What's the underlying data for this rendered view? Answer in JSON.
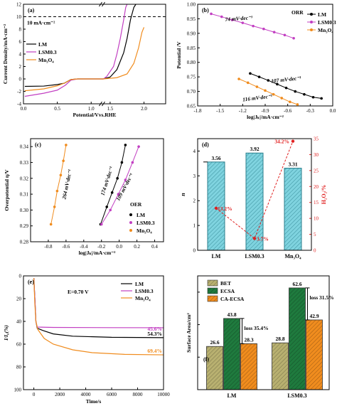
{
  "chart_data": [
    {
      "panel": "(a)",
      "type": "line",
      "xlabel": "Potential/Vvs.RHE",
      "ylabel": "Current Density/mA·cm⁻²",
      "xlim": [
        0.0,
        2.1
      ],
      "ylim": [
        -4,
        12
      ],
      "x_broken_between": [
        1.1,
        1.4
      ],
      "xticks": [
        "0.0",
        "0.5",
        "1.0",
        "1.5",
        "2.0"
      ],
      "yticks": [
        "-4",
        "-2",
        "0",
        "2",
        "4",
        "6",
        "8",
        "10",
        "12"
      ],
      "reference_line": {
        "y": 10,
        "label": "10 mA·cm⁻²"
      },
      "legend": "left",
      "series": [
        {
          "name": "LM",
          "color": "#000000",
          "points": [
            [
              0.02,
              -1.2
            ],
            [
              0.3,
              -1.15
            ],
            [
              0.5,
              -0.9
            ],
            [
              0.6,
              -0.7
            ],
            [
              0.7,
              -0.1
            ],
            [
              0.8,
              0.0
            ],
            [
              1.0,
              0.0
            ],
            [
              1.1,
              0.0
            ],
            [
              1.4,
              0.0
            ],
            [
              1.5,
              0.3
            ],
            [
              1.6,
              1.5
            ],
            [
              1.7,
              4.2
            ],
            [
              1.75,
              6.5
            ],
            [
              1.8,
              9.5
            ],
            [
              1.85,
              11.5
            ],
            [
              1.88,
              12.4
            ]
          ]
        },
        {
          "name": "LSM0.3",
          "color": "#c23fc2",
          "points": [
            [
              0.02,
              -2.8
            ],
            [
              0.3,
              -2.3
            ],
            [
              0.5,
              -1.8
            ],
            [
              0.62,
              -1.0
            ],
            [
              0.7,
              -0.2
            ],
            [
              0.8,
              0.0
            ],
            [
              1.0,
              0.0
            ],
            [
              1.1,
              0.0
            ],
            [
              1.4,
              0.0
            ],
            [
              1.45,
              0.4
            ],
            [
              1.55,
              2.0
            ],
            [
              1.6,
              4.0
            ],
            [
              1.65,
              6.5
            ],
            [
              1.7,
              9.5
            ],
            [
              1.73,
              11.5
            ],
            [
              1.75,
              12.4
            ]
          ]
        },
        {
          "name": "Mn₃O₄",
          "color": "#f08c1e",
          "points": [
            [
              0.02,
              -1.9
            ],
            [
              0.3,
              -1.6
            ],
            [
              0.5,
              -1.1
            ],
            [
              0.62,
              -0.6
            ],
            [
              0.7,
              -0.1
            ],
            [
              0.8,
              0.0
            ],
            [
              1.0,
              0.0
            ],
            [
              1.1,
              0.0
            ],
            [
              1.4,
              0.0
            ],
            [
              1.6,
              0.2
            ],
            [
              1.75,
              0.8
            ],
            [
              1.85,
              2.5
            ],
            [
              1.92,
              5.0
            ],
            [
              1.97,
              7.5
            ],
            [
              2.0,
              8.3
            ]
          ]
        }
      ]
    },
    {
      "panel": "(b)",
      "type": "line",
      "annotation": "ORR",
      "xlabel": "log|Jₖ|/mA·cm⁻²",
      "ylabel": "Potential /V",
      "xlim": [
        -1.8,
        0.0
      ],
      "ylim": [
        0.65,
        1.0
      ],
      "xticks": [
        "-1.8",
        "-1.5",
        "-1.2",
        "-0.9",
        "-0.6",
        "-0.3",
        "0.0"
      ],
      "yticks": [
        "0.65",
        "0.70",
        "0.75",
        "0.80",
        "0.85",
        "0.90",
        "0.95",
        "1.00"
      ],
      "legend": "top-right",
      "series": [
        {
          "name": "LM",
          "color": "#000000",
          "x": [
            -1.1,
            -0.98,
            -0.86,
            -0.74,
            -0.62,
            -0.5,
            -0.38,
            -0.26,
            -0.15
          ],
          "y": [
            0.762,
            0.75,
            0.738,
            0.725,
            0.712,
            0.7,
            0.69,
            0.68,
            0.676
          ],
          "slope_label": "107 mV·dec⁻¹"
        },
        {
          "name": "LSM0.3",
          "color": "#c23fc2",
          "x": [
            -1.62,
            -1.48,
            -1.34,
            -1.2,
            -1.06,
            -0.92,
            -0.78,
            -0.64,
            -0.52
          ],
          "y": [
            0.967,
            0.957,
            0.946,
            0.936,
            0.925,
            0.915,
            0.904,
            0.894,
            0.883
          ],
          "slope_label": "74 mV·dec⁻¹"
        },
        {
          "name": "Mn₃O₄",
          "color": "#f08c1e",
          "x": [
            -1.25,
            -1.13,
            -1.01,
            -0.9,
            -0.79,
            -0.68,
            -0.57,
            -0.47
          ],
          "y": [
            0.743,
            0.73,
            0.716,
            0.703,
            0.69,
            0.677,
            0.664,
            0.655
          ],
          "slope_label": "116 mV·dec⁻¹"
        }
      ]
    },
    {
      "panel": "(c)",
      "type": "line",
      "annotation": "OER",
      "xlabel": "log|Jₖ|/mA·cm⁻²",
      "ylabel": "Overpotential η/V",
      "xlim": [
        -1.0,
        0.5
      ],
      "ylim": [
        0.28,
        0.345
      ],
      "xticks": [
        "-0.8",
        "-0.6",
        "-0.4",
        "-0.2",
        "0.0",
        "0.2",
        "0.4"
      ],
      "yticks": [
        "0.28",
        "0.29",
        "0.30",
        "0.31",
        "0.32",
        "0.33",
        "0.34"
      ],
      "legend": "bottom-right",
      "series": [
        {
          "name": "LM",
          "color": "#000000",
          "x": [
            -0.21,
            -0.14,
            -0.08,
            -0.02,
            0.03,
            0.07
          ],
          "y": [
            0.291,
            0.302,
            0.311,
            0.32,
            0.33,
            0.341
          ],
          "slope_label": "174 mV·dec⁻¹"
        },
        {
          "name": "LSM0.3",
          "color": "#c23fc2",
          "x": [
            -0.2,
            -0.1,
            -0.01,
            0.07,
            0.15,
            0.22
          ],
          "y": [
            0.291,
            0.3,
            0.31,
            0.319,
            0.33,
            0.34
          ],
          "slope_label": "109 mV·dec⁻¹"
        },
        {
          "name": "Mn₃O₄",
          "color": "#f08c1e",
          "x": [
            -0.77,
            -0.73,
            -0.7,
            -0.66,
            -0.63,
            -0.6
          ],
          "y": [
            0.291,
            0.302,
            0.312,
            0.322,
            0.331,
            0.341
          ],
          "slope_label": "264 mV·dec⁻¹"
        }
      ]
    },
    {
      "panel": "(d)",
      "type": "bar",
      "categories": [
        "LM",
        "LSM0.3",
        "Mn₃O₄"
      ],
      "ylabel": "n",
      "ylim": [
        0,
        4.5
      ],
      "yticks": [
        "0",
        "1",
        "2",
        "3",
        "4"
      ],
      "values": [
        3.56,
        3.92,
        3.31
      ],
      "value_labels": [
        "3.56",
        "3.92",
        "3.31"
      ],
      "bar_color": "#7fd3df",
      "y2label": "H₂O₂/%",
      "y2lim": [
        0,
        35
      ],
      "y2ticks": [
        "0",
        "5",
        "10",
        "15",
        "20",
        "25",
        "30",
        "35"
      ],
      "y2_color": "#e02020",
      "y2_series": {
        "values": [
          13.2,
          3.7,
          34.2
        ],
        "labels": [
          "13.2%",
          "3.7%",
          "34.2%"
        ]
      }
    },
    {
      "panel": "(e)",
      "type": "line",
      "annotation": "E=0.70 V",
      "xlabel": "Time/s",
      "ylabel": "I/I₀(%)",
      "xlim": [
        -800,
        10000
      ],
      "ylim": [
        100,
        0
      ],
      "xticks": [
        "0",
        "2000",
        "4000",
        "6000",
        "8000",
        "10000"
      ],
      "yticks": [
        "0",
        "20",
        "40",
        "60",
        "80",
        "100"
      ],
      "legend": "top-right",
      "series": [
        {
          "name": "LM",
          "color": "#000000",
          "end_label": "54.3%",
          "points": [
            [
              0,
              2
            ],
            [
              80,
              20
            ],
            [
              160,
              40
            ],
            [
              260,
              46
            ],
            [
              700,
              48
            ],
            [
              1500,
              51
            ],
            [
              3000,
              53
            ],
            [
              6000,
              54
            ],
            [
              10000,
              54.3
            ]
          ]
        },
        {
          "name": "LSM0.3",
          "color": "#c23fc2",
          "end_label": "45.6%",
          "points": [
            [
              0,
              2
            ],
            [
              80,
              20
            ],
            [
              160,
              40
            ],
            [
              260,
              45
            ],
            [
              1500,
              45.3
            ],
            [
              6000,
              45.5
            ],
            [
              10000,
              45.6
            ]
          ]
        },
        {
          "name": "Mn₃O₄",
          "color": "#f08c1e",
          "end_label": "69.4%",
          "points": [
            [
              0,
              2
            ],
            [
              80,
              25
            ],
            [
              160,
              40
            ],
            [
              300,
              47
            ],
            [
              800,
              55
            ],
            [
              1500,
              60
            ],
            [
              3000,
              65
            ],
            [
              4500,
              67.5
            ],
            [
              7000,
              69
            ],
            [
              10000,
              69.4
            ]
          ]
        }
      ]
    },
    {
      "panel": "(f)",
      "type": "bar",
      "categories": [
        "LM",
        "LSM0.3"
      ],
      "ylabel": "Surface Area/cm²",
      "ylim": [
        0,
        70
      ],
      "legend": "top-left",
      "series": [
        {
          "name": "BET",
          "color": "#b8b070",
          "values": [
            26.6,
            28.8
          ],
          "labels": [
            "26.6",
            "28.8"
          ]
        },
        {
          "name": "ECSA",
          "color": "#1f7a3e",
          "values": [
            43.8,
            62.6
          ],
          "labels": [
            "43.8",
            "62.6"
          ]
        },
        {
          "name": "CA-ECSA",
          "color": "#f08c1e",
          "values": [
            28.3,
            42.9
          ],
          "labels": [
            "28.3",
            "42.9"
          ]
        }
      ],
      "annotations": [
        "loss 35.4%",
        "loss 31.5%"
      ]
    }
  ]
}
